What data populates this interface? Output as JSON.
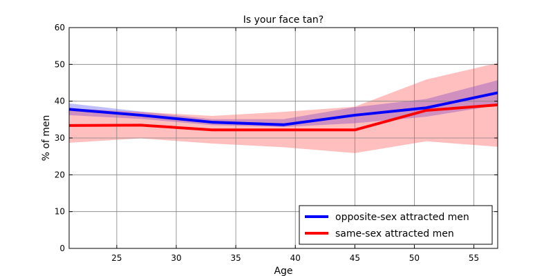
{
  "chart_data": {
    "type": "line",
    "title": "Is your face tan?",
    "xlabel": "Age",
    "ylabel": "% of men",
    "xlim": [
      21,
      57
    ],
    "ylim": [
      0,
      60
    ],
    "xticks": [
      25,
      30,
      35,
      40,
      45,
      50,
      55
    ],
    "yticks": [
      0,
      10,
      20,
      30,
      40,
      50,
      60
    ],
    "grid": true,
    "legend_position": "bottom-right",
    "series": [
      {
        "name": "opposite-sex attracted men",
        "color": "#0000ff",
        "x": [
          21,
          27,
          33,
          39,
          45,
          51,
          57
        ],
        "values": [
          37.8,
          36.2,
          34.3,
          33.6,
          36.2,
          38.2,
          42.3
        ],
        "lower": [
          36.2,
          35.2,
          33.5,
          33.0,
          34.0,
          35.8,
          38.9
        ],
        "upper": [
          39.4,
          37.2,
          35.1,
          35.1,
          38.4,
          40.6,
          45.7
        ]
      },
      {
        "name": "same-sex attracted men",
        "color": "#ff0000",
        "x": [
          21,
          27,
          33,
          39,
          45,
          51,
          57
        ],
        "values": [
          33.4,
          33.5,
          32.2,
          32.2,
          32.2,
          37.5,
          39.0
        ],
        "lower": [
          28.7,
          29.9,
          28.5,
          27.5,
          25.9,
          29.1,
          27.6
        ],
        "upper": [
          38.1,
          37.1,
          36.0,
          37.1,
          38.5,
          45.9,
          50.4
        ]
      }
    ]
  }
}
